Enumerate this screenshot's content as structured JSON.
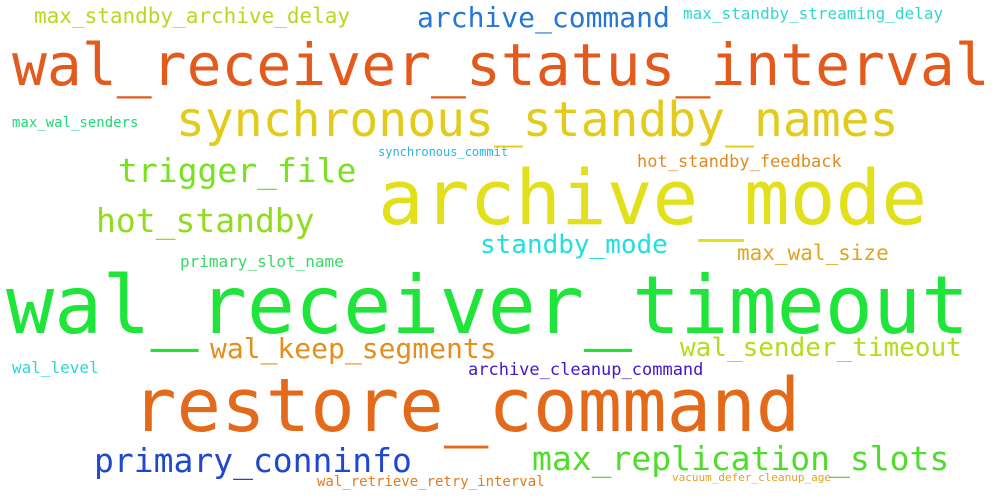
{
  "words": [
    {
      "id": "w1",
      "text": "max_standby_archive_delay",
      "color": "#bcd61f"
    },
    {
      "id": "w2",
      "text": "archive_command",
      "color": "#2477d8"
    },
    {
      "id": "w3",
      "text": "max_standby_streaming_delay",
      "color": "#2ed8d0"
    },
    {
      "id": "w4",
      "text": "wal_receiver_status_interval",
      "color": "#e35a1c"
    },
    {
      "id": "w5",
      "text": "synchronous_standby_names",
      "color": "#e2cb1b"
    },
    {
      "id": "w6",
      "text": "max_wal_senders",
      "color": "#22d873"
    },
    {
      "id": "w7",
      "text": "synchronous_commit",
      "color": "#27b7e0"
    },
    {
      "id": "w8",
      "text": "trigger_file",
      "color": "#79e11e"
    },
    {
      "id": "w9",
      "text": "hot_standby_feedback",
      "color": "#e28a1f"
    },
    {
      "id": "w10",
      "text": "archive_mode",
      "color": "#e2e01a"
    },
    {
      "id": "w11",
      "text": "hot_standby",
      "color": "#92dc1e"
    },
    {
      "id": "w12",
      "text": "standby_mode",
      "color": "#21dfe0"
    },
    {
      "id": "w13",
      "text": "primary_slot_name",
      "color": "#3ad865"
    },
    {
      "id": "w14",
      "text": "max_wal_size",
      "color": "#e0a51f"
    },
    {
      "id": "w15",
      "text": "wal_receiver_timeout",
      "color": "#1fe43a"
    },
    {
      "id": "w16",
      "text": "wal_keep_segments",
      "color": "#e38f1e"
    },
    {
      "id": "w17",
      "text": "wal_sender_timeout",
      "color": "#b3dc1c"
    },
    {
      "id": "w18",
      "text": "wal_level",
      "color": "#2ad8d8"
    },
    {
      "id": "w19",
      "text": "archive_cleanup_command",
      "color": "#4416c7"
    },
    {
      "id": "w20",
      "text": "restore_command",
      "color": "#e36a1b"
    },
    {
      "id": "w21",
      "text": "primary_conninfo",
      "color": "#2047cf"
    },
    {
      "id": "w22",
      "text": "max_replication_slots",
      "color": "#50dc2c"
    },
    {
      "id": "w23",
      "text": "wal_retrieve_retry_interval",
      "color": "#e27a1f"
    },
    {
      "id": "w24",
      "text": "vacuum_defer_cleanup_age",
      "color": "#e3a025"
    }
  ]
}
